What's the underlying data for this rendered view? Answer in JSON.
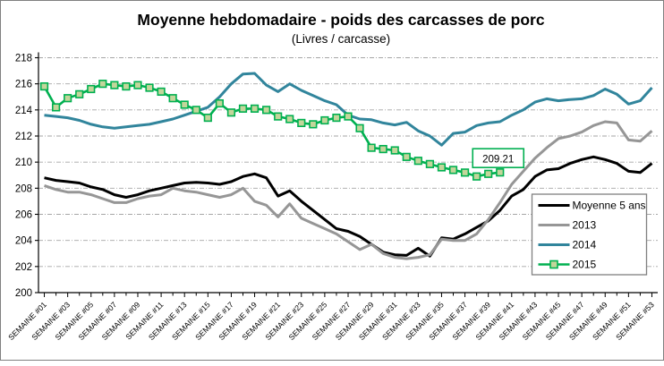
{
  "figure": {
    "background": "#FFFFFF",
    "border_color": "#808080"
  },
  "chart_data": {
    "type": "line",
    "title": "Moyenne hebdomadaire - poids des carcasses de porc",
    "subtitle": "(Livres / carcasse)",
    "xlabel": "",
    "ylabel": "",
    "ylim": [
      200,
      218
    ],
    "y_tick_step": 2,
    "y_tick_labels": [
      "200",
      "202",
      "204",
      "206",
      "208",
      "210",
      "212",
      "214",
      "216",
      "218"
    ],
    "num_weeks": 53,
    "x_tick_every": 2,
    "x_tick_labels": [
      "SEMAINE #01",
      "SEMAINE #03",
      "SEMAINE #05",
      "SEMAINE #07",
      "SEMAINE #09",
      "SEMAINE #11",
      "SEMAINE #13",
      "SEMAINE #15",
      "SEMAINE #17",
      "SEMAINE #19",
      "SEMAINE #21",
      "SEMAINE #23",
      "SEMAINE #25",
      "SEMAINE #27",
      "SEMAINE #29",
      "SEMAINE #31",
      "SEMAINE #33",
      "SEMAINE #35",
      "SEMAINE #37",
      "SEMAINE #39",
      "SEMAINE #41",
      "SEMAINE #43",
      "SEMAINE #45",
      "SEMAINE #47",
      "SEMAINE #49",
      "SEMAINE #51",
      "SEMAINE #53"
    ],
    "grid": true,
    "gridline_color": "#A6A6A6",
    "axis_color": "#000000",
    "legend": {
      "position": "inside-right-lower",
      "border_color": "#7F7F7F",
      "items": [
        "Moyenne 5 ans",
        "2013",
        "2014",
        "2015"
      ]
    },
    "annotation": {
      "text": "209.21",
      "series": "2015",
      "point_index": 39,
      "border_color": "#00B050",
      "fill": "#FFFFFF"
    },
    "series": [
      {
        "name": "Moyenne 5 ans",
        "color": "#000000",
        "line_width": 3,
        "marker": false,
        "values": [
          208.8,
          208.6,
          208.5,
          208.4,
          208.1,
          207.9,
          207.5,
          207.3,
          207.5,
          207.8,
          208.0,
          208.2,
          208.4,
          208.45,
          208.4,
          208.3,
          208.5,
          208.9,
          209.1,
          208.8,
          207.4,
          207.8,
          207.0,
          206.3,
          205.6,
          204.9,
          204.7,
          204.3,
          203.7,
          203.1,
          202.9,
          202.85,
          203.4,
          202.8,
          204.2,
          204.1,
          204.5,
          205.0,
          205.5,
          206.3,
          207.4,
          207.9,
          208.9,
          209.4,
          209.5,
          209.9,
          210.2,
          210.4,
          210.2,
          209.9,
          209.3,
          209.2,
          209.9
        ]
      },
      {
        "name": "2013",
        "color": "#969696",
        "line_width": 3,
        "marker": false,
        "values": [
          208.2,
          207.9,
          207.7,
          207.7,
          207.5,
          207.2,
          206.9,
          206.9,
          207.2,
          207.4,
          207.5,
          208.0,
          207.8,
          207.7,
          207.5,
          207.3,
          207.5,
          208.0,
          207.0,
          206.7,
          205.8,
          206.8,
          205.7,
          205.3,
          204.9,
          204.5,
          203.9,
          203.3,
          203.7,
          203.0,
          202.7,
          202.6,
          202.7,
          202.9,
          204.1,
          204.0,
          204.0,
          204.5,
          205.6,
          206.9,
          208.3,
          209.3,
          210.3,
          211.1,
          211.8,
          212.0,
          212.3,
          212.8,
          213.1,
          213.0,
          211.7,
          211.6,
          212.4
        ]
      },
      {
        "name": "2014",
        "color": "#31859C",
        "line_width": 3,
        "marker": false,
        "values": [
          213.6,
          213.5,
          213.4,
          213.2,
          212.9,
          212.7,
          212.6,
          212.7,
          212.8,
          212.9,
          213.1,
          213.3,
          213.6,
          213.9,
          214.2,
          215.0,
          216.0,
          216.75,
          216.8,
          215.9,
          215.4,
          216.0,
          215.5,
          215.1,
          214.7,
          214.4,
          213.6,
          213.3,
          213.25,
          213.0,
          212.85,
          213.05,
          212.4,
          212.0,
          211.3,
          212.2,
          212.3,
          212.8,
          213.0,
          213.1,
          213.6,
          214.0,
          214.6,
          214.85,
          214.7,
          214.8,
          214.85,
          215.1,
          215.6,
          215.2,
          214.45,
          214.7,
          215.7
        ]
      },
      {
        "name": "2015",
        "color": "#00B050",
        "line_width": 2.6,
        "marker": true,
        "marker_fill": "#C3D69B",
        "marker_stroke": "#00B050",
        "values": [
          215.8,
          214.2,
          214.9,
          215.2,
          215.6,
          216.0,
          215.9,
          215.8,
          215.9,
          215.7,
          215.4,
          214.9,
          214.4,
          214.0,
          213.4,
          214.5,
          213.8,
          214.1,
          214.1,
          214.0,
          213.5,
          213.3,
          213.0,
          212.9,
          213.2,
          213.4,
          213.5,
          212.6,
          211.1,
          211.0,
          210.9,
          210.4,
          210.1,
          209.85,
          209.6,
          209.4,
          209.2,
          208.9,
          209.1,
          209.21
        ]
      }
    ]
  }
}
